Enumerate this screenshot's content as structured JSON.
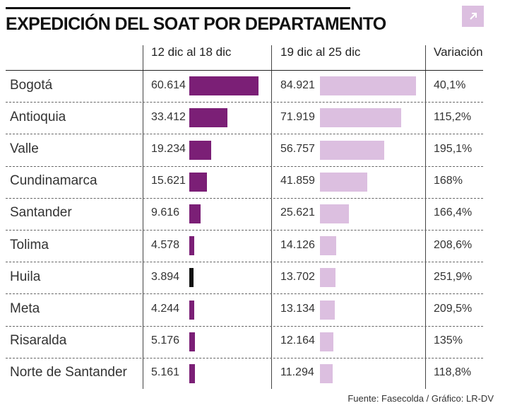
{
  "title": "EXPEDICIÓN DEL SOAT POR DEPARTAMENTO",
  "expand_icon": "arrow-up-right-icon",
  "source": "Fuente: Fasecolda / Gráfico: LR-DV",
  "colors": {
    "period1_bar": "#7b1f76",
    "period1_highlight": "#111111",
    "period2_bar": "#dcbfe0",
    "expand_button": "#dcbfe0"
  },
  "chart_data": {
    "type": "bar",
    "title": "EXPEDICIÓN DEL SOAT POR DEPARTAMENTO",
    "categories": [
      "Bogotá",
      "Antioquia",
      "Valle",
      "Cundinamarca",
      "Santander",
      "Tolima",
      "Huila",
      "Meta",
      "Risaralda",
      "Norte de Santander"
    ],
    "series": [
      {
        "name": "12 dic al 18 dic",
        "values": [
          60614,
          33412,
          19234,
          15621,
          9616,
          4578,
          3894,
          4244,
          5176,
          5161
        ],
        "labels": [
          "60.614",
          "33.412",
          "19.234",
          "15.621",
          "9.616",
          "4.578",
          "3.894",
          "4.244",
          "5.176",
          "5.161"
        ]
      },
      {
        "name": "19 dic al 25 dic",
        "values": [
          84921,
          71919,
          56757,
          41859,
          25621,
          14126,
          13702,
          13134,
          12164,
          11294
        ],
        "labels": [
          "84.921",
          "71.919",
          "56.757",
          "41.859",
          "25.621",
          "14.126",
          "13.702",
          "13.134",
          "12.164",
          "11.294"
        ]
      }
    ],
    "variation_header": "Variación",
    "variation": [
      "40,1%",
      "115,2%",
      "195,1%",
      "168%",
      "166,4%",
      "208,6%",
      "251,9%",
      "209,5%",
      "135%",
      "118,8%"
    ],
    "highlighted_category": "Huila",
    "grid": false,
    "legend": "none"
  }
}
